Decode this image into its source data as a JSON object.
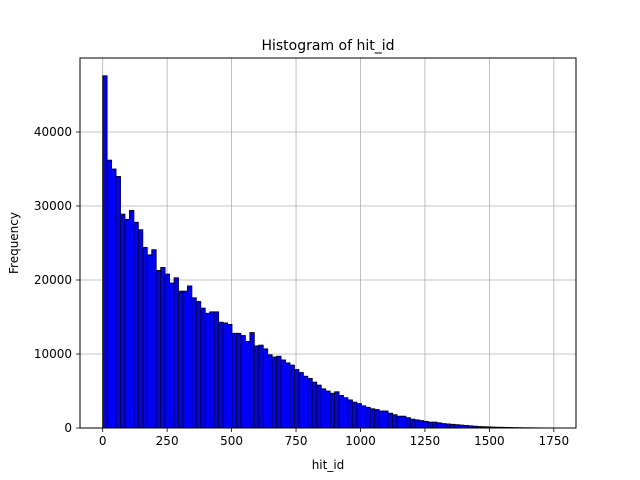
{
  "chart_data": {
    "type": "bar",
    "title": "Histogram of hit_id",
    "xlabel": "hit_id",
    "ylabel": "Frequency",
    "xlim": [
      -88,
      1836
    ],
    "ylim": [
      0,
      50000
    ],
    "grid": true,
    "bar_color": "#0000ff",
    "edge_color": "#000000",
    "bin_start": 0,
    "bin_width": 17.3,
    "x_ticks": [
      0,
      250,
      500,
      750,
      1000,
      1250,
      1500,
      1750
    ],
    "y_ticks": [
      0,
      10000,
      20000,
      30000,
      40000
    ],
    "tick_labels_x": [
      "0",
      "250",
      "500",
      "750",
      "1000",
      "1250",
      "1500",
      "1750"
    ],
    "tick_labels_y": [
      "0",
      "10000",
      "20000",
      "30000",
      "40000"
    ],
    "values": [
      47600,
      36200,
      35000,
      34000,
      28900,
      28200,
      29400,
      27800,
      26800,
      24400,
      23400,
      24100,
      21300,
      21700,
      20800,
      19600,
      20300,
      18500,
      18500,
      19200,
      17600,
      17100,
      16200,
      15500,
      15700,
      15700,
      14300,
      14200,
      14000,
      12800,
      12800,
      12500,
      11700,
      12900,
      11100,
      11200,
      10700,
      9900,
      9600,
      9700,
      9200,
      8800,
      8500,
      7900,
      7500,
      7000,
      6700,
      6200,
      5800,
      5300,
      5000,
      4700,
      4900,
      4400,
      4100,
      3800,
      3500,
      3300,
      3000,
      2800,
      2600,
      2500,
      2300,
      2300,
      2000,
      1800,
      1600,
      1600,
      1400,
      1200,
      1100,
      1000,
      900,
      800,
      800,
      700,
      600,
      550,
      500,
      450,
      400,
      350,
      300,
      250,
      200,
      180,
      160,
      130,
      110,
      100,
      85,
      70,
      60,
      50,
      40,
      35,
      30,
      25,
      20,
      18,
      15
    ]
  }
}
